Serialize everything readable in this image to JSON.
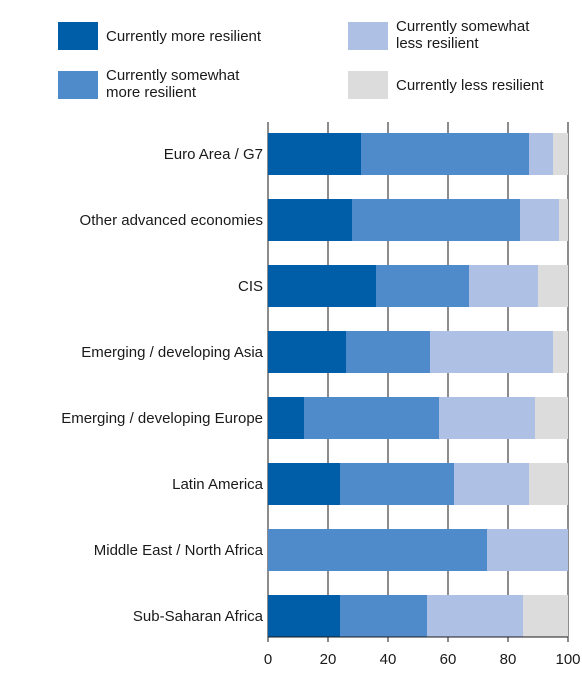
{
  "chart_data": {
    "type": "bar",
    "orientation": "horizontal",
    "stacked": true,
    "categories": [
      "Euro Area / G7",
      "Other advanced economies",
      "CIS",
      "Emerging / developing Asia",
      "Emerging / developing Europe",
      "Latin America",
      "Middle East / North Africa",
      "Sub-Saharan Africa"
    ],
    "series": [
      {
        "name": "Currently more resilient",
        "color": "#005ea8",
        "values": [
          31,
          28,
          36,
          26,
          12,
          24,
          0,
          24
        ]
      },
      {
        "name": "Currently somewhat more resilient",
        "color": "#4f8acb",
        "values": [
          56,
          56,
          31,
          28,
          45,
          38,
          73,
          29
        ]
      },
      {
        "name": "Currently somewhat less resilient",
        "color": "#aec1e4",
        "values": [
          8,
          13,
          23,
          41,
          32,
          25,
          27,
          32
        ]
      },
      {
        "name": "Currently less resilient",
        "color": "#dcdcdc",
        "values": [
          5,
          3,
          10,
          5,
          11,
          13,
          0,
          15
        ]
      }
    ],
    "xlim": [
      0,
      100
    ],
    "xticks": [
      0,
      20,
      40,
      60,
      80,
      100
    ],
    "grid": true,
    "legend_position": "top",
    "title": "",
    "xlabel": "",
    "ylabel": ""
  }
}
